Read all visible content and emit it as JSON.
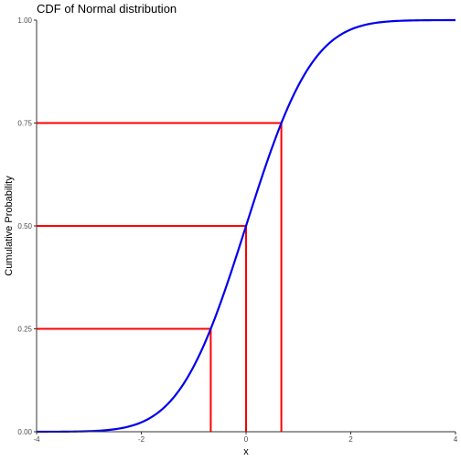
{
  "chart_data": {
    "type": "line",
    "title": "CDF of Normal distribution",
    "xlabel": "x",
    "ylabel": "Cumulative Probability",
    "xlim": [
      -4,
      4
    ],
    "ylim": [
      0,
      1
    ],
    "x_ticks": [
      -4,
      -2,
      0,
      2,
      4
    ],
    "x_tick_labels": [
      "-4",
      "-2",
      "0",
      "2",
      "4"
    ],
    "y_ticks": [
      0,
      0.25,
      0.5,
      0.75,
      1
    ],
    "y_tick_labels": [
      "0.00",
      "0.25",
      "0.50",
      "0.75",
      "1.00"
    ],
    "grid": false,
    "series": [
      {
        "color": "#0000ee",
        "x": [
          -4,
          -3.5,
          -3,
          -2.75,
          -2.5,
          -2.25,
          -2,
          -1.75,
          -1.5,
          -1.25,
          -1,
          -0.75,
          -0.5,
          -0.25,
          0,
          0.25,
          0.5,
          0.75,
          1,
          1.25,
          1.5,
          1.75,
          2,
          2.25,
          2.5,
          2.75,
          3,
          3.5,
          4
        ],
        "y": [
          0.0,
          0.0002,
          0.0013,
          0.003,
          0.0062,
          0.0122,
          0.0228,
          0.0401,
          0.0668,
          0.1056,
          0.1587,
          0.2266,
          0.3085,
          0.4013,
          0.5,
          0.5987,
          0.6915,
          0.7734,
          0.8413,
          0.8944,
          0.9332,
          0.9599,
          0.9772,
          0.9878,
          0.9938,
          0.997,
          0.9987,
          0.9998,
          1.0
        ]
      }
    ],
    "quantile_lines": {
      "color": "#ff0000",
      "points": [
        {
          "x": -0.674,
          "y": 0.25
        },
        {
          "x": 0,
          "y": 0.5
        },
        {
          "x": 0.674,
          "y": 0.75
        }
      ]
    }
  }
}
